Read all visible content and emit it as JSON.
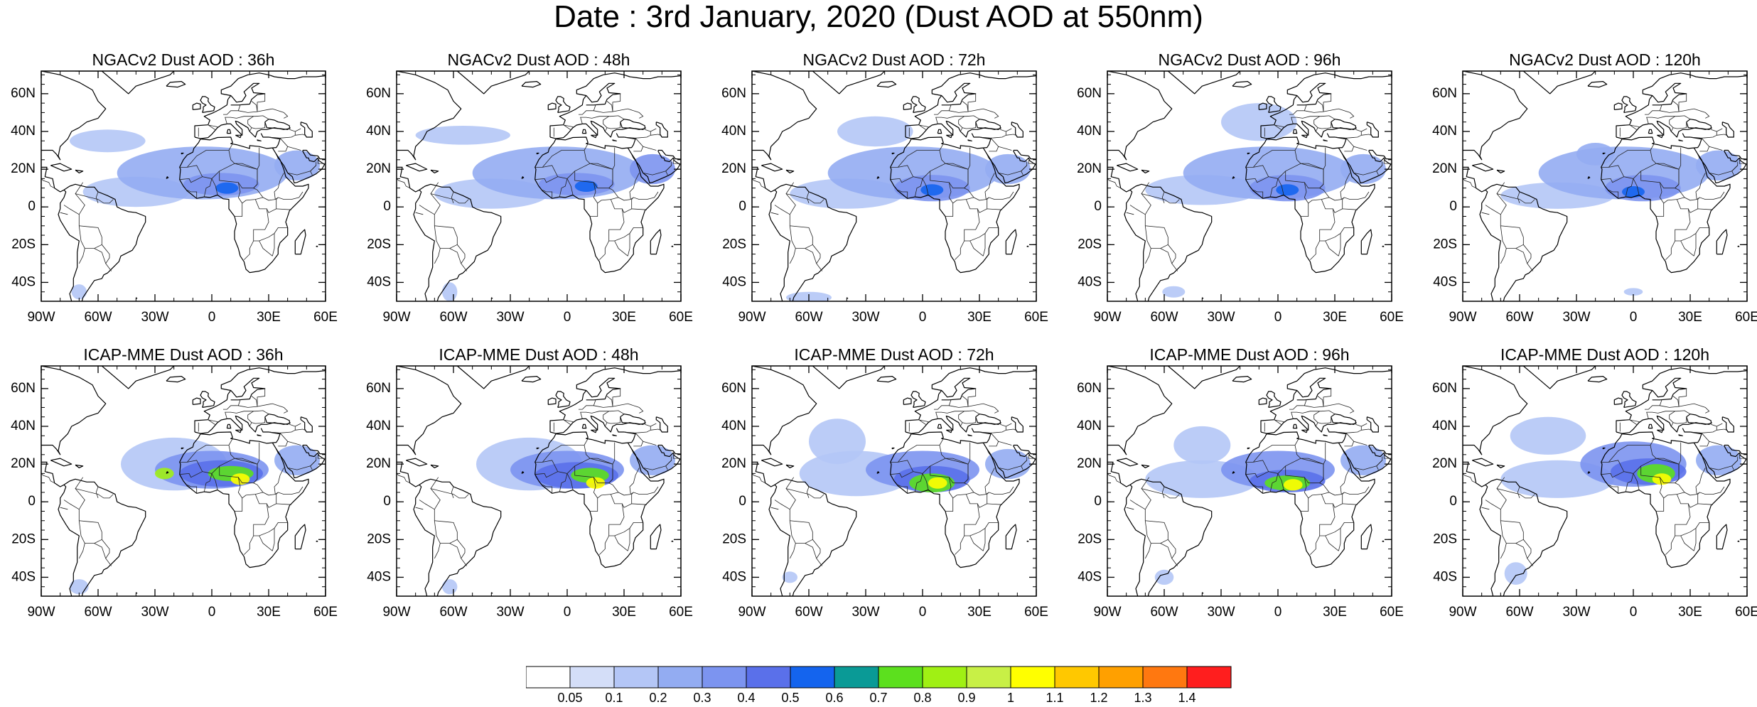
{
  "title": "Date : 3rd January, 2020 (Dust AOD at 550nm)",
  "panels": [
    {
      "title": "NGACv2 Dust AOD : 36h",
      "model": "NGACv2",
      "lead": "36h",
      "plumes": [
        [
          -40,
          8,
          28,
          8,
          0.15
        ],
        [
          -5,
          18,
          45,
          14,
          0.2
        ],
        [
          5,
          12,
          20,
          6,
          0.35
        ],
        [
          8,
          10,
          6,
          3,
          0.55
        ],
        [
          -55,
          35,
          20,
          6,
          0.1
        ],
        [
          45,
          22,
          12,
          8,
          0.25
        ],
        [
          -70,
          -45,
          4,
          4,
          0.15
        ]
      ]
    },
    {
      "title": "NGACv2 Dust AOD : 48h",
      "model": "NGACv2",
      "lead": "48h",
      "plumes": [
        [
          -40,
          7,
          30,
          8,
          0.15
        ],
        [
          -5,
          18,
          45,
          14,
          0.2
        ],
        [
          5,
          12,
          20,
          6,
          0.35
        ],
        [
          10,
          11,
          6,
          3,
          0.55
        ],
        [
          -55,
          38,
          25,
          5,
          0.1
        ],
        [
          45,
          20,
          12,
          8,
          0.3
        ],
        [
          -62,
          -45,
          4,
          5,
          0.15
        ]
      ]
    },
    {
      "title": "NGACv2 Dust AOD : 72h",
      "model": "NGACv2",
      "lead": "72h",
      "plumes": [
        [
          -40,
          7,
          30,
          8,
          0.15
        ],
        [
          -5,
          18,
          45,
          14,
          0.2
        ],
        [
          5,
          10,
          20,
          7,
          0.3
        ],
        [
          5,
          9,
          6,
          3,
          0.5
        ],
        [
          -25,
          40,
          20,
          8,
          0.1
        ],
        [
          45,
          20,
          12,
          8,
          0.2
        ],
        [
          -60,
          -48,
          12,
          3,
          0.15
        ]
      ]
    },
    {
      "title": "NGACv2 Dust AOD : 96h",
      "model": "NGACv2",
      "lead": "96h",
      "plumes": [
        [
          -40,
          9,
          30,
          8,
          0.15
        ],
        [
          -5,
          18,
          45,
          14,
          0.2
        ],
        [
          5,
          10,
          20,
          7,
          0.3
        ],
        [
          5,
          9,
          6,
          3,
          0.5
        ],
        [
          -10,
          45,
          20,
          10,
          0.1
        ],
        [
          45,
          20,
          12,
          8,
          0.2
        ],
        [
          -55,
          -45,
          6,
          3,
          0.15
        ]
      ]
    },
    {
      "title": "NGACv2 Dust AOD : 120h",
      "model": "NGACv2",
      "lead": "120h",
      "plumes": [
        [
          -40,
          6,
          30,
          7,
          0.15
        ],
        [
          -5,
          18,
          45,
          14,
          0.2
        ],
        [
          -20,
          28,
          10,
          6,
          0.25
        ],
        [
          5,
          10,
          20,
          7,
          0.3
        ],
        [
          0,
          8,
          6,
          3,
          0.5
        ],
        [
          45,
          22,
          12,
          8,
          0.2
        ],
        [
          0,
          -45,
          5,
          2,
          0.15
        ]
      ]
    },
    {
      "title": "ICAP-MME Dust AOD : 36h",
      "model": "ICAP-MME",
      "lead": "36h",
      "plumes": [
        [
          -20,
          20,
          28,
          14,
          0.15
        ],
        [
          0,
          17,
          30,
          10,
          0.3
        ],
        [
          5,
          15,
          22,
          7,
          0.45
        ],
        [
          10,
          15,
          12,
          4,
          0.75
        ],
        [
          15,
          12,
          5,
          3,
          1.05
        ],
        [
          -25,
          15,
          5,
          3,
          0.85
        ],
        [
          45,
          22,
          12,
          8,
          0.2
        ],
        [
          -70,
          -45,
          5,
          4,
          0.15
        ]
      ]
    },
    {
      "title": "ICAP-MME Dust AOD : 48h",
      "model": "ICAP-MME",
      "lead": "48h",
      "plumes": [
        [
          -20,
          20,
          28,
          14,
          0.15
        ],
        [
          0,
          17,
          30,
          10,
          0.3
        ],
        [
          5,
          14,
          22,
          7,
          0.45
        ],
        [
          12,
          14,
          10,
          4,
          0.75
        ],
        [
          15,
          10,
          5,
          3,
          1.05
        ],
        [
          45,
          22,
          12,
          8,
          0.2
        ],
        [
          -62,
          -45,
          4,
          4,
          0.15
        ]
      ]
    },
    {
      "title": "ICAP-MME Dust AOD : 72h",
      "model": "ICAP-MME",
      "lead": "72h",
      "plumes": [
        [
          -35,
          15,
          30,
          12,
          0.15
        ],
        [
          0,
          17,
          30,
          10,
          0.3
        ],
        [
          5,
          12,
          20,
          7,
          0.45
        ],
        [
          5,
          10,
          12,
          5,
          0.75
        ],
        [
          8,
          10,
          5,
          3,
          1.05
        ],
        [
          -45,
          32,
          15,
          12,
          0.1
        ],
        [
          45,
          20,
          12,
          8,
          0.2
        ],
        [
          -70,
          -40,
          4,
          3,
          0.15
        ]
      ]
    },
    {
      "title": "ICAP-MME Dust AOD : 96h",
      "model": "ICAP-MME",
      "lead": "96h",
      "plumes": [
        [
          -40,
          12,
          30,
          10,
          0.15
        ],
        [
          0,
          17,
          30,
          10,
          0.3
        ],
        [
          5,
          11,
          20,
          6,
          0.45
        ],
        [
          5,
          10,
          12,
          4,
          0.75
        ],
        [
          8,
          9,
          5,
          3,
          1.05
        ],
        [
          -40,
          30,
          15,
          10,
          0.1
        ],
        [
          45,
          22,
          12,
          8,
          0.2
        ],
        [
          -60,
          -40,
          5,
          4,
          0.15
        ]
      ]
    },
    {
      "title": "ICAP-MME Dust AOD : 120h",
      "model": "ICAP-MME",
      "lead": "120h",
      "plumes": [
        [
          -40,
          12,
          30,
          10,
          0.15
        ],
        [
          0,
          20,
          28,
          12,
          0.3
        ],
        [
          8,
          16,
          20,
          7,
          0.45
        ],
        [
          12,
          15,
          10,
          5,
          0.75
        ],
        [
          15,
          12,
          5,
          3,
          1.05
        ],
        [
          -45,
          35,
          20,
          10,
          0.12
        ],
        [
          45,
          22,
          12,
          8,
          0.2
        ],
        [
          -62,
          -38,
          6,
          6,
          0.15
        ]
      ]
    }
  ],
  "axes": {
    "lon_min": -90,
    "lon_max": 60,
    "lat_min": -50,
    "lat_max": 72,
    "lat_ticks": [
      {
        "v": 60,
        "label": "60N"
      },
      {
        "v": 40,
        "label": "40N"
      },
      {
        "v": 20,
        "label": "20N"
      },
      {
        "v": 0,
        "label": "0"
      },
      {
        "v": -20,
        "label": "20S"
      },
      {
        "v": -40,
        "label": "40S"
      }
    ],
    "lon_ticks": [
      {
        "v": -90,
        "label": "90W"
      },
      {
        "v": -60,
        "label": "60W"
      },
      {
        "v": -30,
        "label": "30W"
      },
      {
        "v": 0,
        "label": "0"
      },
      {
        "v": 30,
        "label": "30E"
      },
      {
        "v": 60,
        "label": "60E"
      }
    ]
  },
  "colorbar": {
    "labels": [
      "0.05",
      "0.1",
      "0.2",
      "0.3",
      "0.4",
      "0.5",
      "0.6",
      "0.7",
      "0.8",
      "0.9",
      "1",
      "1.1",
      "1.2",
      "1.3",
      "1.4"
    ],
    "colors": [
      "#ffffff",
      "#d4def8",
      "#b4c6f6",
      "#93acf2",
      "#7c94f0",
      "#5a70ea",
      "#1464ee",
      "#0a9a96",
      "#5ce01e",
      "#a0f014",
      "#c8f046",
      "#ffff00",
      "#ffc800",
      "#ffa000",
      "#ff7810",
      "#ff1e1e"
    ]
  }
}
